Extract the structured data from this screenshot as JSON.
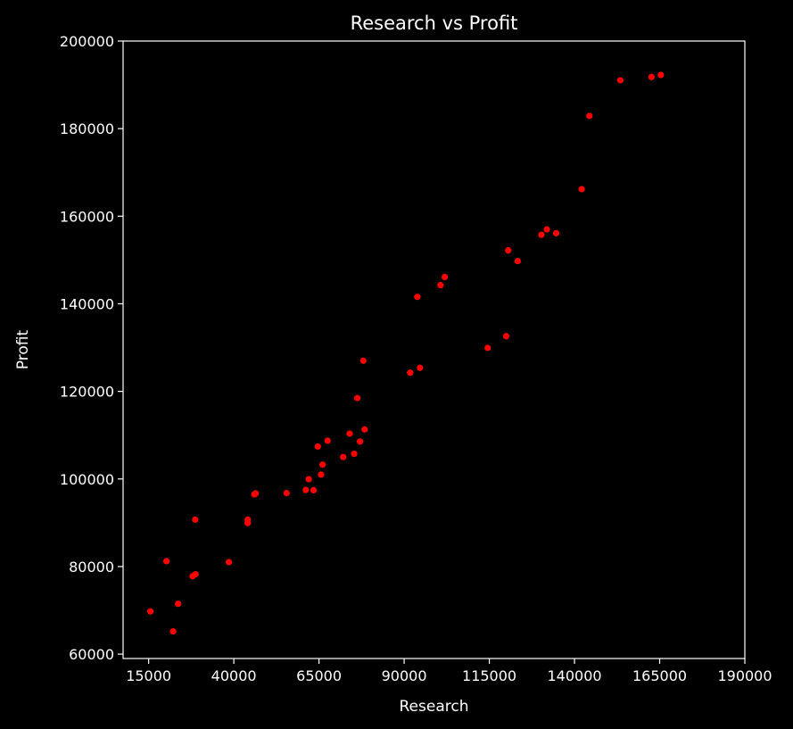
{
  "chart_data": {
    "type": "scatter",
    "title": "Research vs Profit",
    "xlabel": "Research",
    "ylabel": "Profit",
    "xlim": [
      7500,
      190000
    ],
    "ylim": [
      59000,
      200000
    ],
    "xticks": [
      "15000",
      "40000",
      "65000",
      "90000",
      "115000",
      "140000",
      "165000",
      "190000"
    ],
    "yticks": [
      "60000",
      "80000",
      "100000",
      "120000",
      "140000",
      "160000",
      "180000",
      "200000"
    ],
    "grid": false,
    "marker_color": "#ff0000",
    "points": [
      [
        165349,
        192262
      ],
      [
        162598,
        191792
      ],
      [
        153442,
        191050
      ],
      [
        144372,
        182902
      ],
      [
        142107,
        166188
      ],
      [
        131877,
        156991
      ],
      [
        134615,
        156123
      ],
      [
        130298,
        155753
      ],
      [
        120543,
        152212
      ],
      [
        123335,
        149760
      ],
      [
        101913,
        146122
      ],
      [
        100672,
        144259
      ],
      [
        93864,
        141586
      ],
      [
        119943,
        132602
      ],
      [
        114524,
        129917
      ],
      [
        78013,
        126993
      ],
      [
        94657,
        125371
      ],
      [
        91749,
        124267
      ],
      [
        76254,
        118474
      ],
      [
        78389,
        111313
      ],
      [
        73995,
        110352
      ],
      [
        67533,
        108734
      ],
      [
        77044,
        108552
      ],
      [
        64665,
        107404
      ],
      [
        75329,
        105734
      ],
      [
        72108,
        105008
      ],
      [
        66052,
        103282
      ],
      [
        65605,
        101004
      ],
      [
        61994,
        99938
      ],
      [
        61136,
        97484
      ],
      [
        63409,
        97427
      ],
      [
        55494,
        96779
      ],
      [
        46427,
        96713
      ],
      [
        46015,
        96479
      ],
      [
        44070,
        90708
      ],
      [
        28664,
        90708
      ],
      [
        44069,
        89949
      ],
      [
        20230,
        81229
      ],
      [
        38559,
        81006
      ],
      [
        28754,
        78240
      ],
      [
        27893,
        77798
      ],
      [
        23641,
        71498
      ],
      [
        15506,
        69759
      ],
      [
        22178,
        65200
      ]
    ]
  }
}
